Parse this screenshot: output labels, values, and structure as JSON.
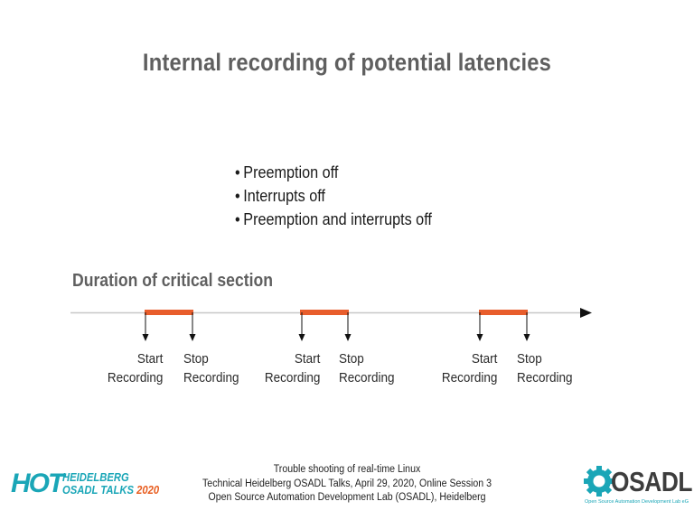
{
  "title": "Internal recording of potential latencies",
  "bullets": [
    "Preemption off",
    "Interrupts off",
    "Preemption and interrupts off"
  ],
  "bullet_glyph": "•",
  "subheading": "Duration of critical section",
  "timeline": {
    "segments": [
      {
        "start_line1": "Start",
        "start_line2": "Recording",
        "stop_line1": "Stop",
        "stop_line2": "Recording"
      },
      {
        "start_line1": "Start",
        "start_line2": "Recording",
        "stop_line1": "Stop",
        "stop_line2": "Recording"
      },
      {
        "start_line1": "Start",
        "start_line2": "Recording",
        "stop_line1": "Stop",
        "stop_line2": "Recording"
      }
    ],
    "axis_color": "#c8c8c8",
    "bar_color": "#e85d2c",
    "arrow_color": "#111111"
  },
  "footer": {
    "line1": "Trouble shooting of real-time Linux",
    "line2": "Technical Heidelberg OSADL Talks, April 29, 2020, Online Session 3",
    "line3": "Open Source Automation Development Lab (OSADL), Heidelberg"
  },
  "logo_hot": {
    "big": "HOT",
    "line1": "HEIDELBERG",
    "line2_a": "OSADL TALKS",
    "line2_b": "2020",
    "color": "#1aa6b7",
    "accent": "#e85d1f"
  },
  "logo_osadl": {
    "word": "OSADL",
    "tagline": "Open Source Automation Development Lab eG",
    "icon": "gear-icon",
    "color": "#1aa6b7"
  }
}
